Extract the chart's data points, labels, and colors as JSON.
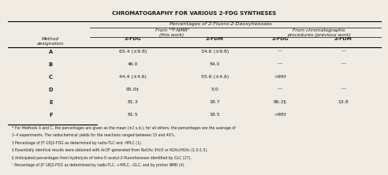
{
  "title": "CHROMATOGRAPHY FOR VARIOUS 2-FDG SYNTHESES",
  "header1": "Percentages of 2-Fluoro-2-Deoxyhexoses",
  "header2a": "From ¹⁹F-NMRᵃ",
  "header2a_sub": "(this work)",
  "header2b": "From chromatographic",
  "header2b_sub": "procedures (previous work)",
  "col_headers": [
    "2-FDG",
    "2-FDM",
    "2-FDG",
    "2-FDM"
  ],
  "row_header": [
    "Method",
    "designation"
  ],
  "methods": [
    "A",
    "B",
    "C",
    "D",
    "E",
    "F"
  ],
  "col1": [
    "65.4 (±9.8)",
    "46.0",
    "44.4 (±4.6)",
    "95.0‡",
    "81.3",
    "81.5"
  ],
  "col2": [
    "34.6 (±9.8)",
    "54.0",
    "55.6 (±4.6)",
    "5.0",
    "18.7",
    "18.5"
  ],
  "col3": [
    "—",
    "—",
    ">99†",
    "—",
    "86.2§",
    ">98†"
  ],
  "col4": [
    "—",
    "—",
    "",
    "—",
    "13.8",
    ""
  ],
  "footnotes": [
    "* For Methods A and C, the percentages are given as the mean (±2 s.d.); for all others, the percentages are the average of",
    "2–4 experiments. The radiochemical yields for the reactions ranged between 15 and 40%.",
    "† Percentage of [F-18]2-FDG as determined by radio-TLC and -HPLC (1).",
    "‡ Essentially identical results were obtained with AcOF generated from NaOAc·3H₂O or KOAc/HOAc (1.0:1.5).",
    "§ Anticipated percentages from hydrolysis of tetra-O-acetyl-2-fluorohexoses identified by GLC (27).",
    "¹ Percentage of [F-18]2-FDG as determined by radio-TLC, +HPLC, -GLC, and by proton NMR (4)."
  ],
  "bg_color": "#f0ece4",
  "text_color": "#1a1a1a"
}
